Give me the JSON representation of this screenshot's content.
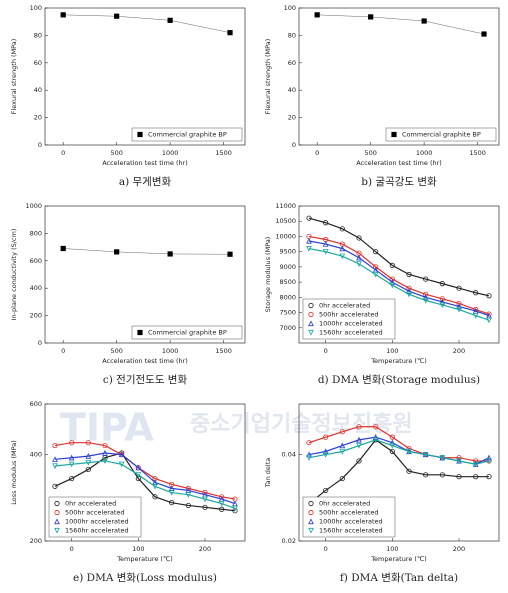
{
  "chart_data": [
    {
      "type": "line",
      "caption": "a) 무게변화",
      "ylabel": "Flexural strength (MPa)",
      "xlabel": "Acceleration test  time (hr)",
      "x": [
        0,
        500,
        1000,
        1560
      ],
      "xlim": [
        -170,
        1700
      ],
      "xticks": [
        0,
        500,
        1000,
        1500
      ],
      "ylim": [
        0,
        100
      ],
      "yticks": [
        0,
        20,
        40,
        60,
        80,
        100
      ],
      "legend": "lower right",
      "series": [
        {
          "name": "Commercial graphite BP",
          "color": "#000000",
          "marker": "square",
          "values": [
            95,
            94,
            91,
            82
          ]
        }
      ]
    },
    {
      "type": "line",
      "caption": "b) 굴곡강도 변화",
      "ylabel": "Flexural strength (MPa)",
      "xlabel": "Acceleration test  time (hr)",
      "x": [
        0,
        500,
        1000,
        1560
      ],
      "xlim": [
        -170,
        1700
      ],
      "xticks": [
        0,
        500,
        1000,
        1500
      ],
      "ylim": [
        0,
        100
      ],
      "yticks": [
        0,
        20,
        40,
        60,
        80,
        100
      ],
      "legend": "lower right",
      "series": [
        {
          "name": "Commercial graphite BP",
          "color": "#000000",
          "marker": "square",
          "values": [
            95,
            93.5,
            90.5,
            81
          ]
        }
      ]
    },
    {
      "type": "line",
      "caption": "c) 전기전도도 변화",
      "ylabel": "In-plane conductivity (S/cm)",
      "xlabel": "Acceleration test  time (hr)",
      "x": [
        0,
        500,
        1000,
        1560
      ],
      "xlim": [
        -170,
        1700
      ],
      "xticks": [
        0,
        500,
        1000,
        1500
      ],
      "ylim": [
        0,
        1000
      ],
      "yticks": [
        0,
        200,
        400,
        600,
        800,
        1000
      ],
      "legend": "lower right",
      "series": [
        {
          "name": "Commercial graphite BP",
          "color": "#000000",
          "marker": "square",
          "values": [
            690,
            665,
            650,
            648
          ]
        }
      ]
    },
    {
      "type": "line",
      "caption": "d) DMA 변화(Storage modulus)",
      "ylabel": "Storage modulus (MPa)",
      "xlabel": "Temperature (℃)",
      "x": [
        -25,
        0,
        25,
        50,
        75,
        100,
        125,
        150,
        175,
        200,
        225,
        245
      ],
      "xlim": [
        -40,
        260
      ],
      "xticks": [
        0,
        100,
        200
      ],
      "ylim": [
        6500,
        11000
      ],
      "yticks": [
        7000,
        7500,
        8000,
        8500,
        9000,
        9500,
        10000,
        10500,
        11000
      ],
      "legend": "lower left",
      "series": [
        {
          "name": "0hr accelerated",
          "color": "#222222",
          "marker": "circle",
          "values": [
            10600,
            10450,
            10250,
            9950,
            9500,
            9050,
            8750,
            8600,
            8450,
            8300,
            8150,
            8050
          ]
        },
        {
          "name": "500hr accelerated",
          "color": "#e0302a",
          "marker": "circle",
          "values": [
            10000,
            9900,
            9750,
            9450,
            9000,
            8600,
            8300,
            8100,
            7950,
            7800,
            7600,
            7450
          ]
        },
        {
          "name": "1000hr accelerated",
          "color": "#2b3fd6",
          "marker": "triangle",
          "values": [
            9850,
            9750,
            9600,
            9300,
            8900,
            8500,
            8200,
            8000,
            7850,
            7700,
            7550,
            7400
          ]
        },
        {
          "name": "1560hr accelerated",
          "color": "#1aa7a0",
          "marker": "down-triangle",
          "values": [
            9600,
            9500,
            9350,
            9100,
            8750,
            8400,
            8100,
            7900,
            7750,
            7600,
            7400,
            7250
          ]
        }
      ]
    },
    {
      "type": "line",
      "caption": "e) DMA 변화(Loss modulus)",
      "ylabel": "Loss modulus (MPa)",
      "xlabel": "Temperature (℃)",
      "log_y": true,
      "x": [
        -25,
        0,
        25,
        50,
        75,
        100,
        125,
        150,
        175,
        200,
        225,
        245
      ],
      "xlim": [
        -40,
        260
      ],
      "xticks": [
        0,
        100,
        200
      ],
      "ylim": [
        200,
        600
      ],
      "yticks": [
        200,
        400,
        600
      ],
      "legend": "lower left",
      "series": [
        {
          "name": "0hr accelerated",
          "color": "#222222",
          "marker": "circle",
          "values": [
            310,
            330,
            355,
            390,
            405,
            330,
            285,
            272,
            266,
            262,
            258,
            255
          ]
        },
        {
          "name": "500hr accelerated",
          "color": "#e0302a",
          "marker": "circle",
          "values": [
            430,
            440,
            440,
            430,
            400,
            360,
            330,
            315,
            305,
            295,
            285,
            280
          ]
        },
        {
          "name": "1000hr accelerated",
          "color": "#2b3fd6",
          "marker": "triangle",
          "values": [
            385,
            390,
            395,
            405,
            400,
            360,
            320,
            305,
            300,
            290,
            280,
            270
          ]
        },
        {
          "name": "1560hr accelerated",
          "color": "#1aa7a0",
          "marker": "down-triangle",
          "values": [
            365,
            370,
            375,
            380,
            370,
            340,
            310,
            295,
            290,
            280,
            270,
            260
          ]
        }
      ]
    },
    {
      "type": "line",
      "caption": "f) DMA 변화(Tan delta)",
      "ylabel": "Tan delta",
      "xlabel": "Temperature (℃)",
      "log_y": true,
      "x": [
        -25,
        0,
        25,
        50,
        75,
        100,
        125,
        150,
        175,
        200,
        225,
        245
      ],
      "xlim": [
        -40,
        260
      ],
      "xticks": [
        0,
        100,
        200
      ],
      "ylim": [
        0.02,
        0.06
      ],
      "yticks": [
        0.02,
        0.04
      ],
      "legend": "lower left",
      "series": [
        {
          "name": "0hr accelerated",
          "color": "#222222",
          "marker": "circle",
          "values": [
            0.027,
            0.03,
            0.033,
            0.038,
            0.045,
            0.041,
            0.035,
            0.034,
            0.034,
            0.0335,
            0.0335,
            0.0335
          ]
        },
        {
          "name": "500hr accelerated",
          "color": "#e0302a",
          "marker": "circle",
          "values": [
            0.044,
            0.046,
            0.048,
            0.05,
            0.05,
            0.046,
            0.042,
            0.04,
            0.039,
            0.039,
            0.038,
            0.038
          ]
        },
        {
          "name": "1000hr accelerated",
          "color": "#2b3fd6",
          "marker": "triangle",
          "values": [
            0.04,
            0.041,
            0.043,
            0.045,
            0.046,
            0.044,
            0.041,
            0.04,
            0.039,
            0.038,
            0.037,
            0.039
          ]
        },
        {
          "name": "1560hr accelerated",
          "color": "#1aa7a0",
          "marker": "down-triangle",
          "values": [
            0.039,
            0.04,
            0.041,
            0.043,
            0.045,
            0.043,
            0.041,
            0.04,
            0.039,
            0.038,
            0.037,
            0.038
          ]
        }
      ]
    }
  ],
  "watermark": {
    "logo": "TIPA",
    "text": "중소기업기술정보진흥원"
  }
}
